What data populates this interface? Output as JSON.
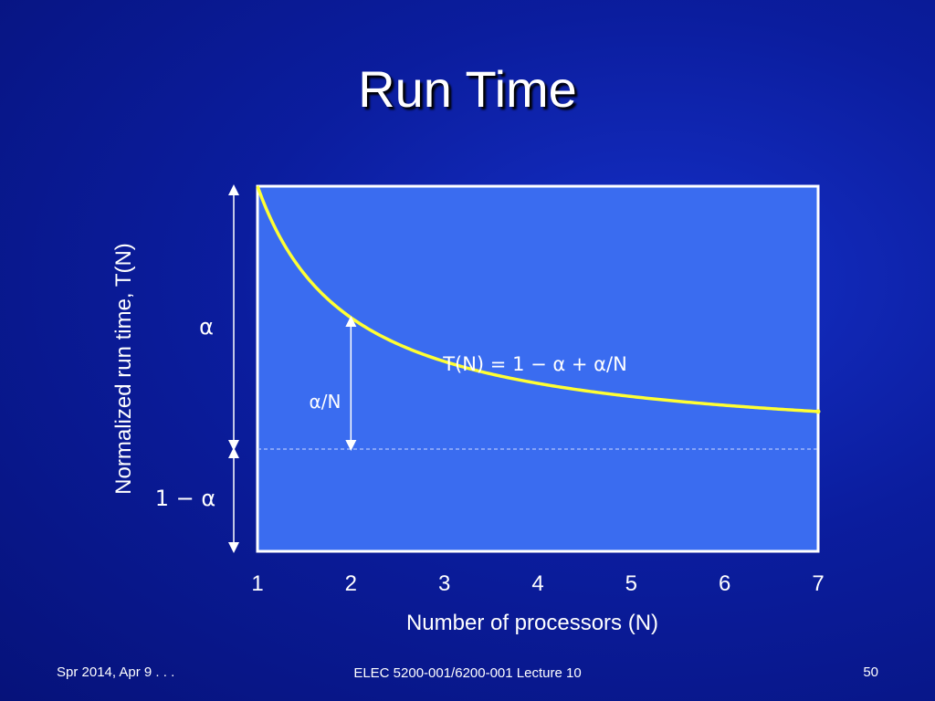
{
  "slide": {
    "title": "Run Time",
    "footer_left": "Spr 2014, Apr 9 . . .",
    "footer_center": "ELEC 5200-001/6200-001 Lecture 10",
    "footer_right": "50"
  },
  "colors": {
    "plot_bg": "#3a6cf0",
    "curve": "#ffff33",
    "frame": "#ffffff"
  },
  "chart_data": {
    "type": "line",
    "xlabel": "Number of processors (N)",
    "ylabel": "Normalized run time, T(N)",
    "x_ticks": [
      "1",
      "2",
      "3",
      "4",
      "5",
      "6",
      "7"
    ],
    "xlim": [
      1,
      7
    ],
    "ylim": [
      0,
      1
    ],
    "alpha": 0.72,
    "formula": "T(N) = 1 − α + α/N",
    "annotations": {
      "alpha": "α",
      "one_minus_alpha": "1 − α",
      "alpha_over_n": "α/N"
    },
    "baseline_dashed": true
  }
}
